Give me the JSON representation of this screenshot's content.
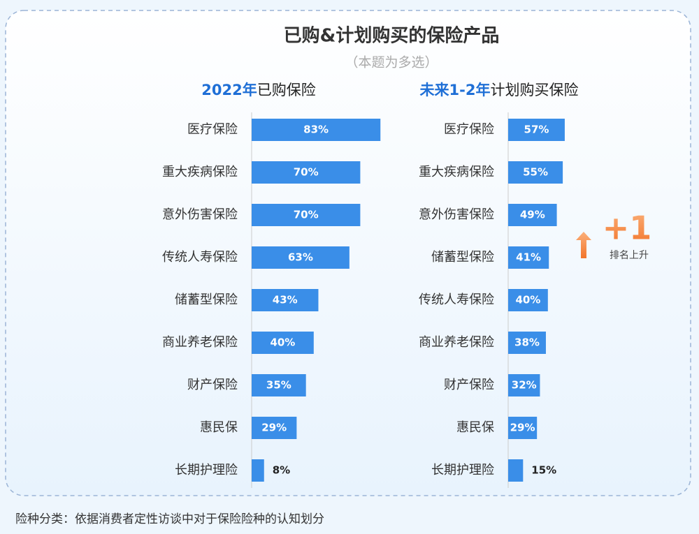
{
  "title": "已购&计划购买的保险产品",
  "subtitle": "（本题为多选）",
  "note": "险种分类：依据消费者定性访谈中对于保险险种的认知划分",
  "chart_data": [
    {
      "type": "bar",
      "orientation": "horizontal",
      "title": [
        "2022年",
        "已购保险"
      ],
      "categories": [
        "医疗保险",
        "重大疾病保险",
        "意外伤害保险",
        "传统人寿保险",
        "储蓄型保险",
        "商业养老保险",
        "财产保险",
        "惠民保",
        "长期护理险"
      ],
      "values": [
        83,
        70,
        70,
        63,
        43,
        40,
        35,
        29,
        8
      ],
      "value_labels": [
        "83%",
        "70%",
        "70%",
        "63%",
        "43%",
        "40%",
        "35%",
        "29%",
        "8%"
      ],
      "color": "#3a8ee8"
    },
    {
      "type": "bar",
      "orientation": "horizontal",
      "title": [
        "未来1-2年",
        "计划购买保险"
      ],
      "categories": [
        "医疗保险",
        "重大疾病保险",
        "意外伤害保险",
        "储蓄型保险",
        "传统人寿保险",
        "商业养老保险",
        "财产保险",
        "惠民保",
        "长期护理险"
      ],
      "values": [
        57,
        55,
        49,
        41,
        40,
        38,
        32,
        29,
        15
      ],
      "value_labels": [
        "57%",
        "55%",
        "49%",
        "41%",
        "40%",
        "38%",
        "32%",
        "29%",
        "15%"
      ],
      "color": "#3a8ee8",
      "annotation": {
        "text": "+1",
        "label": "排名上升"
      }
    }
  ]
}
